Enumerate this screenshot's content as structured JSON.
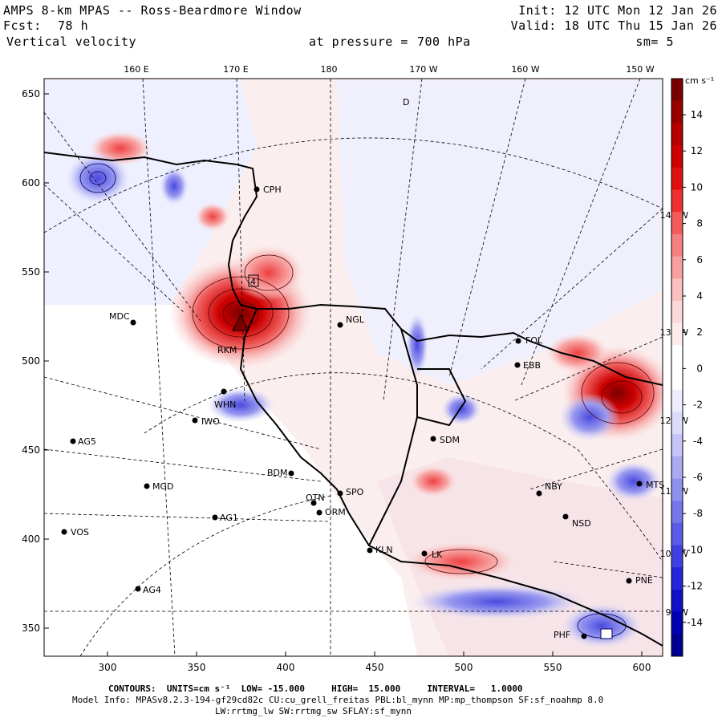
{
  "header": {
    "title": "AMPS 8-km MPAS -- Ross-Beardmore Window",
    "forecast_label": "Fcst:",
    "forecast_hours": "78 h",
    "field": "Vertical velocity",
    "init": "Init: 12 UTC Mon 12 Jan 26",
    "valid": "Valid: 18 UTC Thu 15 Jan 26",
    "pressure_label": "at pressure =",
    "pressure_value": "700 hPa",
    "smoothing": "sm= 5"
  },
  "axes": {
    "x_ticks": [
      "300",
      "350",
      "400",
      "450",
      "500",
      "550",
      "600"
    ],
    "y_ticks": [
      "650",
      "600",
      "550",
      "500",
      "450",
      "400",
      "350"
    ],
    "lon_labels": [
      "160 E",
      "170 E",
      "180",
      "170 W",
      "160 W",
      "150 W"
    ],
    "lon_side_labels": [
      "140 W",
      "130 W",
      "120 W",
      "110 W",
      "100 W",
      "90 W"
    ]
  },
  "colorbar": {
    "units": "cm s⁻¹",
    "ticks": [
      "14",
      "12",
      "10",
      "8",
      "6",
      "4",
      "2",
      "0",
      "-2",
      "-4",
      "-6",
      "-8",
      "-10",
      "-12",
      "-14"
    ],
    "colors": [
      "#7a0000",
      "#980000",
      "#b40000",
      "#cc0000",
      "#e01010",
      "#ee3030",
      "#f45a5a",
      "#f67f7f",
      "#f8a0a0",
      "#fac0c0",
      "#fcd8d8",
      "#feecec",
      "#ffffff",
      "#ffffff",
      "#eeeeff",
      "#dcdcfa",
      "#c4c4f6",
      "#aaaaf2",
      "#9090ee",
      "#7676ea",
      "#5a5ae6",
      "#4040e0",
      "#2424d8",
      "#1010c8",
      "#0000b0",
      "#000090"
    ]
  },
  "stations": [
    {
      "id": "CPH"
    },
    {
      "id": "MDC"
    },
    {
      "id": "NGL"
    },
    {
      "id": "WHN"
    },
    {
      "id": "IWO"
    },
    {
      "id": "AG5"
    },
    {
      "id": "MGD"
    },
    {
      "id": "BDM"
    },
    {
      "id": "SPO"
    },
    {
      "id": "OTN"
    },
    {
      "id": "ORM"
    },
    {
      "id": "AG1"
    },
    {
      "id": "VOS"
    },
    {
      "id": "KLN"
    },
    {
      "id": "LK"
    },
    {
      "id": "AG4"
    },
    {
      "id": "SDM"
    },
    {
      "id": "FOL"
    },
    {
      "id": "EBB"
    },
    {
      "id": "NBY"
    },
    {
      "id": "NSD"
    },
    {
      "id": "MTS"
    },
    {
      "id": "PNE"
    },
    {
      "id": "PHF"
    },
    {
      "id": "RKM"
    },
    {
      "id": "4"
    },
    {
      "id": "D"
    }
  ],
  "footer": {
    "contours": "CONTOURS:  UNITS=cm s⁻¹  LOW= -15.000     HIGH=  15.000     INTERVAL=   1.0000",
    "model_info": "Model Info: MPASv8.2.3-194-gf29cd82c CU:cu_grell_freitas PBL:bl_mynn MP:mp_thompson SF:sf_noahmp 8.0",
    "model_info2": "LW:rrtmg_lw SW:rrtmg_sw SFLAY:sf_mynn"
  }
}
